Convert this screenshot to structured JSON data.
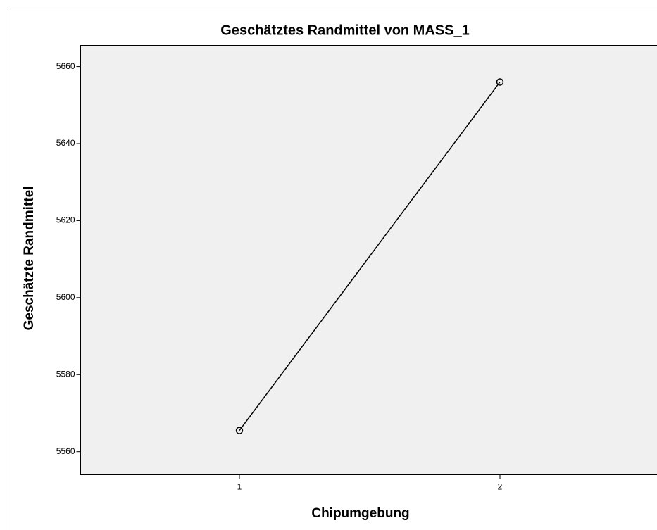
{
  "chart_data": {
    "type": "line",
    "title": "Geschätztes Randmittel von MASS_1",
    "x_label": "Chipumgebung",
    "y_label": "Geschätzte Randmittel",
    "categories": [
      "1",
      "2"
    ],
    "series": [
      {
        "name": "MASS_1",
        "color": "#000000",
        "values": [
          5565.5,
          5656.0
        ]
      }
    ],
    "ylim": [
      5554,
      5665.5
    ],
    "yticks": [
      5560,
      5580,
      5600,
      5620,
      5640,
      5660
    ],
    "grid": false
  }
}
